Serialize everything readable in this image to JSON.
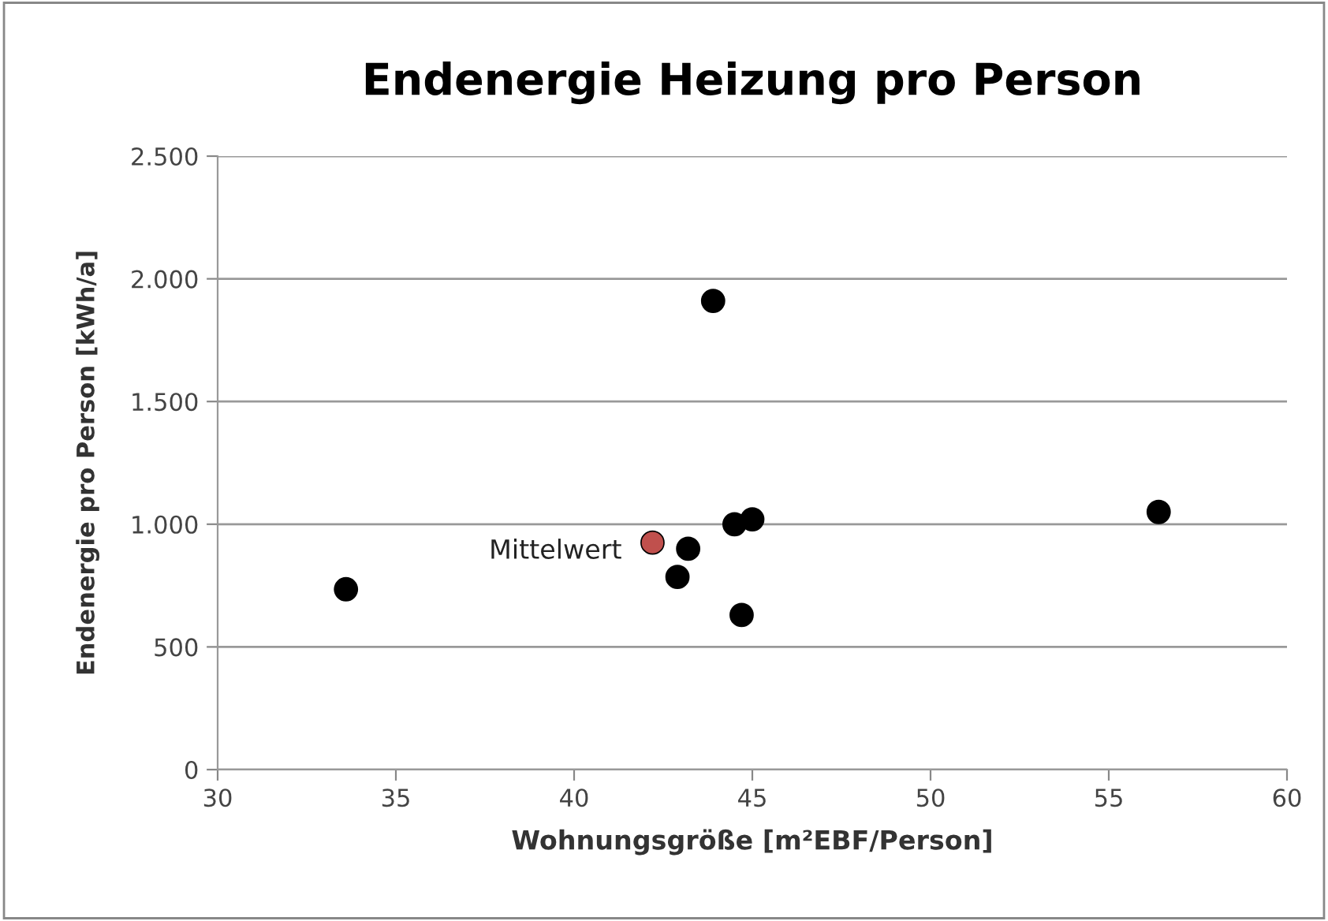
{
  "chart_data": {
    "type": "scatter",
    "title": "Endenergie Heizung pro Person",
    "xlabel": "Wohnungsgröße [m²EBF/Person]",
    "ylabel": "Endenergie pro Person [kWh/a]",
    "series": [
      {
        "color": "#000000",
        "x": [
          33.6,
          43.9,
          44.5,
          45.0,
          43.2,
          42.9,
          44.7,
          56.4
        ],
        "values": [
          735,
          1910,
          1000,
          1020,
          900,
          785,
          630,
          1050
        ]
      },
      {
        "color": "#c0504d",
        "x": [
          42.2
        ],
        "values": [
          925
        ]
      }
    ],
    "annotations": [
      {
        "text": "Mittelwert",
        "x": 42.2,
        "y": 925
      }
    ],
    "xlim": [
      30,
      60
    ],
    "xticks": [
      30,
      35,
      40,
      45,
      50,
      55,
      60
    ],
    "ylim": [
      0,
      2500
    ],
    "yticks": [
      {
        "value": 0,
        "label": "0"
      },
      {
        "value": 500,
        "label": "500"
      },
      {
        "value": 1000,
        "label": "1.000"
      },
      {
        "value": 1500,
        "label": "1.500"
      },
      {
        "value": 2000,
        "label": "2.000"
      },
      {
        "value": 2500,
        "label": "2.500"
      }
    ],
    "grid": "y",
    "marker": "circle"
  }
}
